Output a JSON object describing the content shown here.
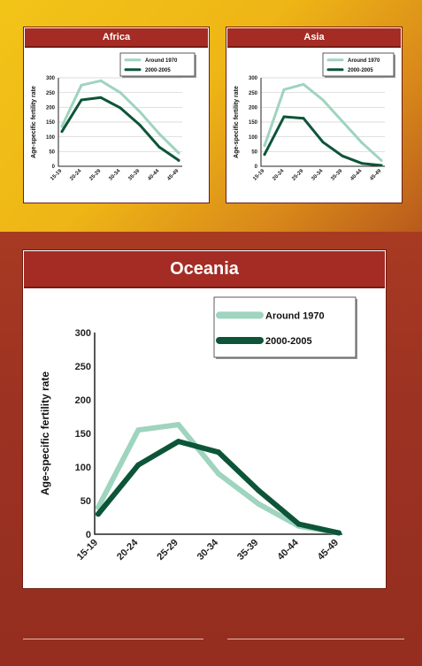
{
  "colors": {
    "around_1970": "#9fd4bf",
    "y2000_2005": "#0d5538",
    "header_bg": "#a42c24"
  },
  "age_groups": [
    "15-19",
    "20-24",
    "25-29",
    "30-34",
    "35-39",
    "40-44",
    "45-49"
  ],
  "chart_data": [
    {
      "type": "line",
      "title": "Africa",
      "ylabel": "Age-specific fertility rate",
      "xlabel": "",
      "ylim": [
        0,
        300
      ],
      "yticks": [
        0,
        50,
        100,
        150,
        200,
        250,
        300
      ],
      "grid": true,
      "legend": "top-right",
      "categories": [
        "15-19",
        "20-24",
        "25-29",
        "30-34",
        "35-39",
        "40-44",
        "45-49"
      ],
      "series": [
        {
          "name": "Around 1970",
          "values": [
            135,
            275,
            290,
            250,
            185,
            110,
            45
          ]
        },
        {
          "name": "2000-2005",
          "values": [
            118,
            225,
            233,
            198,
            140,
            65,
            20
          ]
        }
      ]
    },
    {
      "type": "line",
      "title": "Asia",
      "ylabel": "Age-specific fertility rate",
      "xlabel": "",
      "ylim": [
        0,
        300
      ],
      "yticks": [
        0,
        50,
        100,
        150,
        200,
        250,
        300
      ],
      "grid": true,
      "legend": "top-right",
      "categories": [
        "15-19",
        "20-24",
        "25-29",
        "30-34",
        "35-39",
        "40-44",
        "45-49"
      ],
      "series": [
        {
          "name": "Around 1970",
          "values": [
            70,
            260,
            278,
            225,
            152,
            80,
            20
          ]
        },
        {
          "name": "2000-2005",
          "values": [
            40,
            168,
            163,
            82,
            35,
            10,
            3
          ]
        }
      ]
    },
    {
      "type": "line",
      "title": "Oceania",
      "ylabel": "Age-specific fertility rate",
      "xlabel": "",
      "ylim": [
        0,
        300
      ],
      "yticks": [
        0,
        50,
        100,
        150,
        200,
        250,
        300
      ],
      "grid": false,
      "legend": "top-right",
      "categories": [
        "15-19",
        "20-24",
        "25-29",
        "30-34",
        "35-39",
        "40-44",
        "45-49"
      ],
      "series": [
        {
          "name": "Around 1970",
          "values": [
            40,
            155,
            163,
            90,
            45,
            12,
            2
          ]
        },
        {
          "name": "2000-2005",
          "values": [
            30,
            103,
            138,
            122,
            65,
            15,
            2
          ]
        }
      ]
    }
  ]
}
